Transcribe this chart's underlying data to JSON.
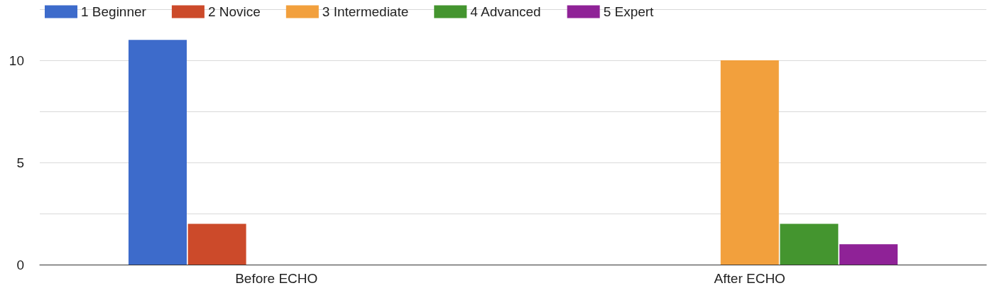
{
  "chart_data": {
    "type": "bar",
    "categories": [
      "Before ECHO",
      "After ECHO"
    ],
    "series": [
      {
        "name": "1 Beginner",
        "color": "#3d6bcb",
        "values": [
          11,
          0
        ]
      },
      {
        "name": "2 Novice",
        "color": "#cc4a2a",
        "values": [
          2,
          0
        ]
      },
      {
        "name": "3 Intermediate",
        "color": "#f2a03d",
        "values": [
          0,
          10
        ]
      },
      {
        "name": "4 Advanced",
        "color": "#44952f",
        "values": [
          0,
          2
        ]
      },
      {
        "name": "5 Expert",
        "color": "#8f2297",
        "values": [
          0,
          1
        ]
      }
    ],
    "ylim": [
      0,
      12.5
    ],
    "yticks": [
      0,
      {
        "value": 2.5,
        "label": null
      },
      5,
      {
        "value": 7.5,
        "label": null
      },
      10,
      {
        "value": 12.5,
        "label": null
      }
    ],
    "grid": "y",
    "legend": "top left"
  }
}
